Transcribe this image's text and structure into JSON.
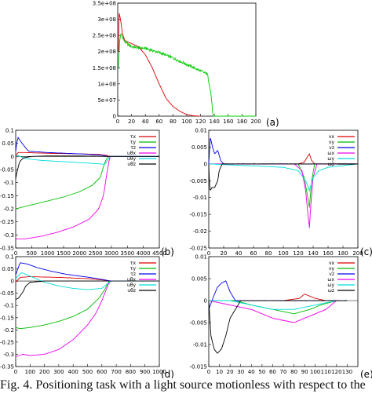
{
  "caption": "Fig. 4.   Positioning task with a light source motionless with respect to the",
  "chart_data": [
    {
      "type": "line",
      "panel_label": "(a)",
      "xlim": [
        0,
        200
      ],
      "ylim": [
        0,
        350000000
      ],
      "xticks": [
        0,
        20,
        40,
        60,
        80,
        100,
        120,
        140,
        160,
        180,
        200
      ],
      "yticks": [
        0,
        50000000,
        100000000,
        150000000,
        200000000,
        250000000,
        300000000,
        350000000
      ],
      "ytick_labels": [
        "0",
        "5e+07",
        "1e+08",
        "1.5e+08",
        "2e+08",
        "2.5e+08",
        "3e+08",
        "3.5e+08"
      ],
      "series": [
        {
          "color": "#dd0000",
          "noise": 0,
          "x": [
            1,
            2,
            4,
            7,
            10,
            14,
            20,
            30,
            40,
            50,
            60,
            70,
            80,
            90,
            100,
            110,
            120
          ],
          "y": [
            200000000,
            320000000,
            300000000,
            255000000,
            235000000,
            230000000,
            225000000,
            215000000,
            190000000,
            150000000,
            100000000,
            55000000,
            30000000,
            15000000,
            5000000,
            1000000,
            0
          ]
        },
        {
          "color": "#00cc00",
          "noise": 0.012,
          "x": [
            1,
            3,
            5,
            10,
            20,
            30,
            40,
            60,
            80,
            100,
            120,
            130,
            135,
            138,
            150,
            200
          ],
          "y": [
            150000000,
            240000000,
            255000000,
            230000000,
            215000000,
            212000000,
            210000000,
            197000000,
            180000000,
            160000000,
            140000000,
            130000000,
            70000000,
            0,
            0,
            0
          ]
        }
      ]
    },
    {
      "type": "line",
      "panel_label": "(b)",
      "xlim": [
        0,
        4500
      ],
      "ylim": [
        -0.35,
        0.1
      ],
      "xticks": [
        0,
        500,
        1000,
        1500,
        2000,
        2500,
        3000,
        3500,
        4000,
        4500
      ],
      "yticks": [
        -0.35,
        -0.3,
        -0.25,
        -0.2,
        -0.15,
        -0.1,
        -0.05,
        0,
        0.05,
        0.1
      ],
      "legend": [
        "τx",
        "τy",
        "τz",
        "uθx",
        "uθy",
        "uθz"
      ],
      "series": [
        {
          "color": "#dd0000",
          "noise": 0,
          "x": [
            0,
            50,
            300,
            1000,
            2000,
            2600,
            2850,
            2950,
            4500
          ],
          "y": [
            -0.01,
            0.015,
            0.015,
            0.012,
            0.01,
            0.008,
            0.004,
            0,
            0
          ]
        },
        {
          "color": "#00bb00",
          "noise": 0,
          "x": [
            0,
            500,
            1000,
            1500,
            2000,
            2400,
            2650,
            2800,
            2900,
            4500
          ],
          "y": [
            -0.2,
            -0.185,
            -0.17,
            -0.155,
            -0.135,
            -0.11,
            -0.08,
            -0.02,
            0,
            0
          ]
        },
        {
          "color": "#0000ee",
          "noise": 0,
          "x": [
            0,
            60,
            200,
            400,
            1000,
            2000,
            2700,
            2900,
            4500
          ],
          "y": [
            0.02,
            0.075,
            0.05,
            0.02,
            0.015,
            0.01,
            0.005,
            0,
            0
          ]
        },
        {
          "color": "#ee00ee",
          "noise": 0,
          "x": [
            0,
            300,
            800,
            1300,
            1800,
            2300,
            2600,
            2750,
            2850,
            2950,
            4500
          ],
          "y": [
            -0.315,
            -0.315,
            -0.305,
            -0.29,
            -0.27,
            -0.24,
            -0.2,
            -0.15,
            -0.07,
            0,
            0
          ]
        },
        {
          "color": "#00dddd",
          "noise": 0,
          "x": [
            0,
            80,
            300,
            800,
            1500,
            2200,
            2800,
            2950,
            4500
          ],
          "y": [
            0,
            0.003,
            -0.008,
            -0.015,
            -0.02,
            -0.025,
            -0.03,
            0,
            0
          ]
        },
        {
          "color": "#000000",
          "noise": 0,
          "x": [
            0,
            40,
            120,
            250,
            500,
            1000,
            2000,
            2900,
            4500
          ],
          "y": [
            -0.085,
            -0.06,
            -0.02,
            -0.005,
            0,
            0.002,
            0.002,
            0,
            0
          ]
        }
      ]
    },
    {
      "type": "line",
      "panel_label": "(c)",
      "xlim": [
        0,
        200
      ],
      "ylim": [
        -0.025,
        0.01
      ],
      "xticks": [
        0,
        20,
        40,
        60,
        80,
        100,
        120,
        140,
        160,
        180,
        200
      ],
      "yticks": [
        -0.025,
        -0.02,
        -0.015,
        -0.01,
        -0.005,
        0,
        0.005,
        0.01
      ],
      "legend": [
        "vx",
        "vy",
        "vz",
        "ωx",
        "ωy",
        "ωz"
      ],
      "series": [
        {
          "color": "#dd0000",
          "noise": 0.0003,
          "x": [
            0,
            120,
            128,
            132,
            135,
            138,
            142,
            146,
            200
          ],
          "y": [
            0,
            0,
            0.0005,
            0.002,
            0.003,
            0.001,
            0,
            0,
            0
          ]
        },
        {
          "color": "#00bb00",
          "noise": 0.0003,
          "x": [
            0,
            120,
            128,
            132,
            135,
            138,
            142,
            200
          ],
          "y": [
            0,
            0,
            -0.004,
            -0.009,
            -0.013,
            -0.005,
            0,
            0
          ]
        },
        {
          "color": "#0000ee",
          "noise": 0.0004,
          "x": [
            0,
            2,
            5,
            8,
            12,
            16,
            20,
            200
          ],
          "y": [
            0,
            0.008,
            0.005,
            0.003,
            0.004,
            0.001,
            0,
            0
          ]
        },
        {
          "color": "#ee00ee",
          "noise": 0.0006,
          "x": [
            0,
            115,
            125,
            130,
            133,
            135,
            137,
            140,
            145,
            200
          ],
          "y": [
            0,
            0,
            -0.002,
            -0.008,
            -0.015,
            -0.019,
            -0.012,
            -0.004,
            0,
            0
          ]
        },
        {
          "color": "#00dddd",
          "noise": 0.0007,
          "x": [
            0,
            100,
            120,
            130,
            135,
            140,
            148,
            160,
            200
          ],
          "y": [
            0,
            -0.001,
            -0.002,
            -0.005,
            -0.008,
            -0.004,
            -0.002,
            -0.001,
            0
          ]
        },
        {
          "color": "#000000",
          "noise": 0.0008,
          "x": [
            0,
            1,
            2,
            4,
            8,
            12,
            14,
            16,
            18,
            20,
            200
          ],
          "y": [
            0,
            -0.006,
            -0.008,
            -0.007,
            -0.007,
            -0.005,
            -0.002,
            -0.001,
            0,
            0,
            0
          ]
        }
      ]
    },
    {
      "type": "line",
      "panel_label": "(d)",
      "xlim": [
        0,
        1000
      ],
      "ylim": [
        -0.35,
        0.1
      ],
      "xticks": [
        0,
        100,
        200,
        300,
        400,
        500,
        600,
        700,
        800,
        900,
        1000
      ],
      "yticks": [
        -0.35,
        -0.3,
        -0.25,
        -0.2,
        -0.15,
        -0.1,
        -0.05,
        0,
        0.05,
        0.1
      ],
      "legend": [
        "τx",
        "τy",
        "τz",
        "uθx",
        "uθy",
        "uθz"
      ],
      "series": [
        {
          "color": "#dd0000",
          "noise": 0,
          "x": [
            0,
            30,
            100,
            300,
            500,
            600,
            640,
            660,
            1000
          ],
          "y": [
            -0.005,
            0.015,
            0.018,
            0.015,
            0.01,
            0.005,
            0.002,
            0,
            0
          ]
        },
        {
          "color": "#00bb00",
          "noise": 0,
          "x": [
            0,
            30,
            100,
            200,
            300,
            400,
            500,
            580,
            620,
            650,
            1000
          ],
          "y": [
            -0.19,
            -0.195,
            -0.19,
            -0.18,
            -0.165,
            -0.145,
            -0.115,
            -0.07,
            -0.035,
            0,
            0
          ]
        },
        {
          "color": "#0000ee",
          "noise": 0,
          "x": [
            0,
            30,
            80,
            150,
            250,
            350,
            450,
            550,
            620,
            660,
            1000
          ],
          "y": [
            0.025,
            0.075,
            0.07,
            0.055,
            0.04,
            0.028,
            0.02,
            0.012,
            0.005,
            0,
            0
          ]
        },
        {
          "color": "#ee00ee",
          "noise": 0,
          "x": [
            0,
            50,
            100,
            200,
            300,
            400,
            500,
            560,
            600,
            640,
            660,
            1000
          ],
          "y": [
            -0.31,
            -0.3,
            -0.305,
            -0.3,
            -0.28,
            -0.24,
            -0.18,
            -0.13,
            -0.08,
            -0.02,
            0,
            0
          ]
        },
        {
          "color": "#00dddd",
          "noise": 0,
          "x": [
            0,
            40,
            100,
            200,
            300,
            400,
            500,
            600,
            660,
            1000
          ],
          "y": [
            0.01,
            0.035,
            0.02,
            -0.005,
            -0.02,
            -0.03,
            -0.035,
            -0.03,
            0,
            0
          ]
        },
        {
          "color": "#000000",
          "noise": 0,
          "x": [
            0,
            20,
            50,
            70,
            100,
            200,
            400,
            660,
            1000
          ],
          "y": [
            -0.075,
            -0.07,
            -0.045,
            -0.02,
            -0.005,
            0,
            0,
            0,
            0
          ]
        }
      ]
    },
    {
      "type": "line",
      "panel_label": "(e)",
      "xlim": [
        0,
        140
      ],
      "ylim": [
        -0.015,
        0.01
      ],
      "xticks": [
        0,
        10,
        20,
        30,
        40,
        50,
        60,
        70,
        80,
        90,
        100,
        110,
        120,
        130
      ],
      "yticks": [
        -0.015,
        -0.01,
        -0.005,
        0,
        0.005,
        0.01
      ],
      "legend": [
        "vx",
        "vy",
        "vz",
        "ωx",
        "ωy",
        "ωz"
      ],
      "series": [
        {
          "color": "#dd0000",
          "noise": 0.0004,
          "x": [
            0,
            70,
            85,
            90,
            95,
            100,
            110,
            130
          ],
          "y": [
            0,
            0,
            0.0005,
            0.0015,
            0.001,
            0.0005,
            0,
            0
          ]
        },
        {
          "color": "#00bb00",
          "noise": 0.0006,
          "x": [
            0,
            25,
            40,
            60,
            80,
            95,
            105,
            120,
            130
          ],
          "y": [
            0,
            0,
            -0.001,
            -0.002,
            -0.003,
            -0.002,
            -0.001,
            0,
            0
          ]
        },
        {
          "color": "#0000ee",
          "noise": 0.0002,
          "x": [
            0,
            3,
            8,
            12,
            16,
            20,
            25,
            30,
            130
          ],
          "y": [
            -0.002,
            0,
            0.003,
            0.004,
            0.0045,
            0.002,
            0,
            0,
            0
          ]
        },
        {
          "color": "#ee00ee",
          "noise": 0.0018,
          "x": [
            0,
            20,
            40,
            60,
            80,
            90,
            100,
            110,
            120,
            130
          ],
          "y": [
            0,
            -0.001,
            -0.002,
            -0.004,
            -0.005,
            -0.004,
            -0.003,
            -0.002,
            0,
            0
          ]
        },
        {
          "color": "#00dddd",
          "noise": 0.0012,
          "x": [
            0,
            20,
            40,
            60,
            80,
            100,
            120,
            130
          ],
          "y": [
            0,
            0,
            -0.001,
            -0.002,
            -0.002,
            -0.001,
            0,
            0
          ]
        },
        {
          "color": "#000000",
          "noise": 0.0015,
          "x": [
            0,
            2,
            5,
            8,
            12,
            16,
            20,
            25,
            30,
            130
          ],
          "y": [
            0,
            -0.008,
            -0.011,
            -0.012,
            -0.011,
            -0.008,
            -0.004,
            -0.002,
            0,
            0
          ]
        }
      ]
    }
  ]
}
